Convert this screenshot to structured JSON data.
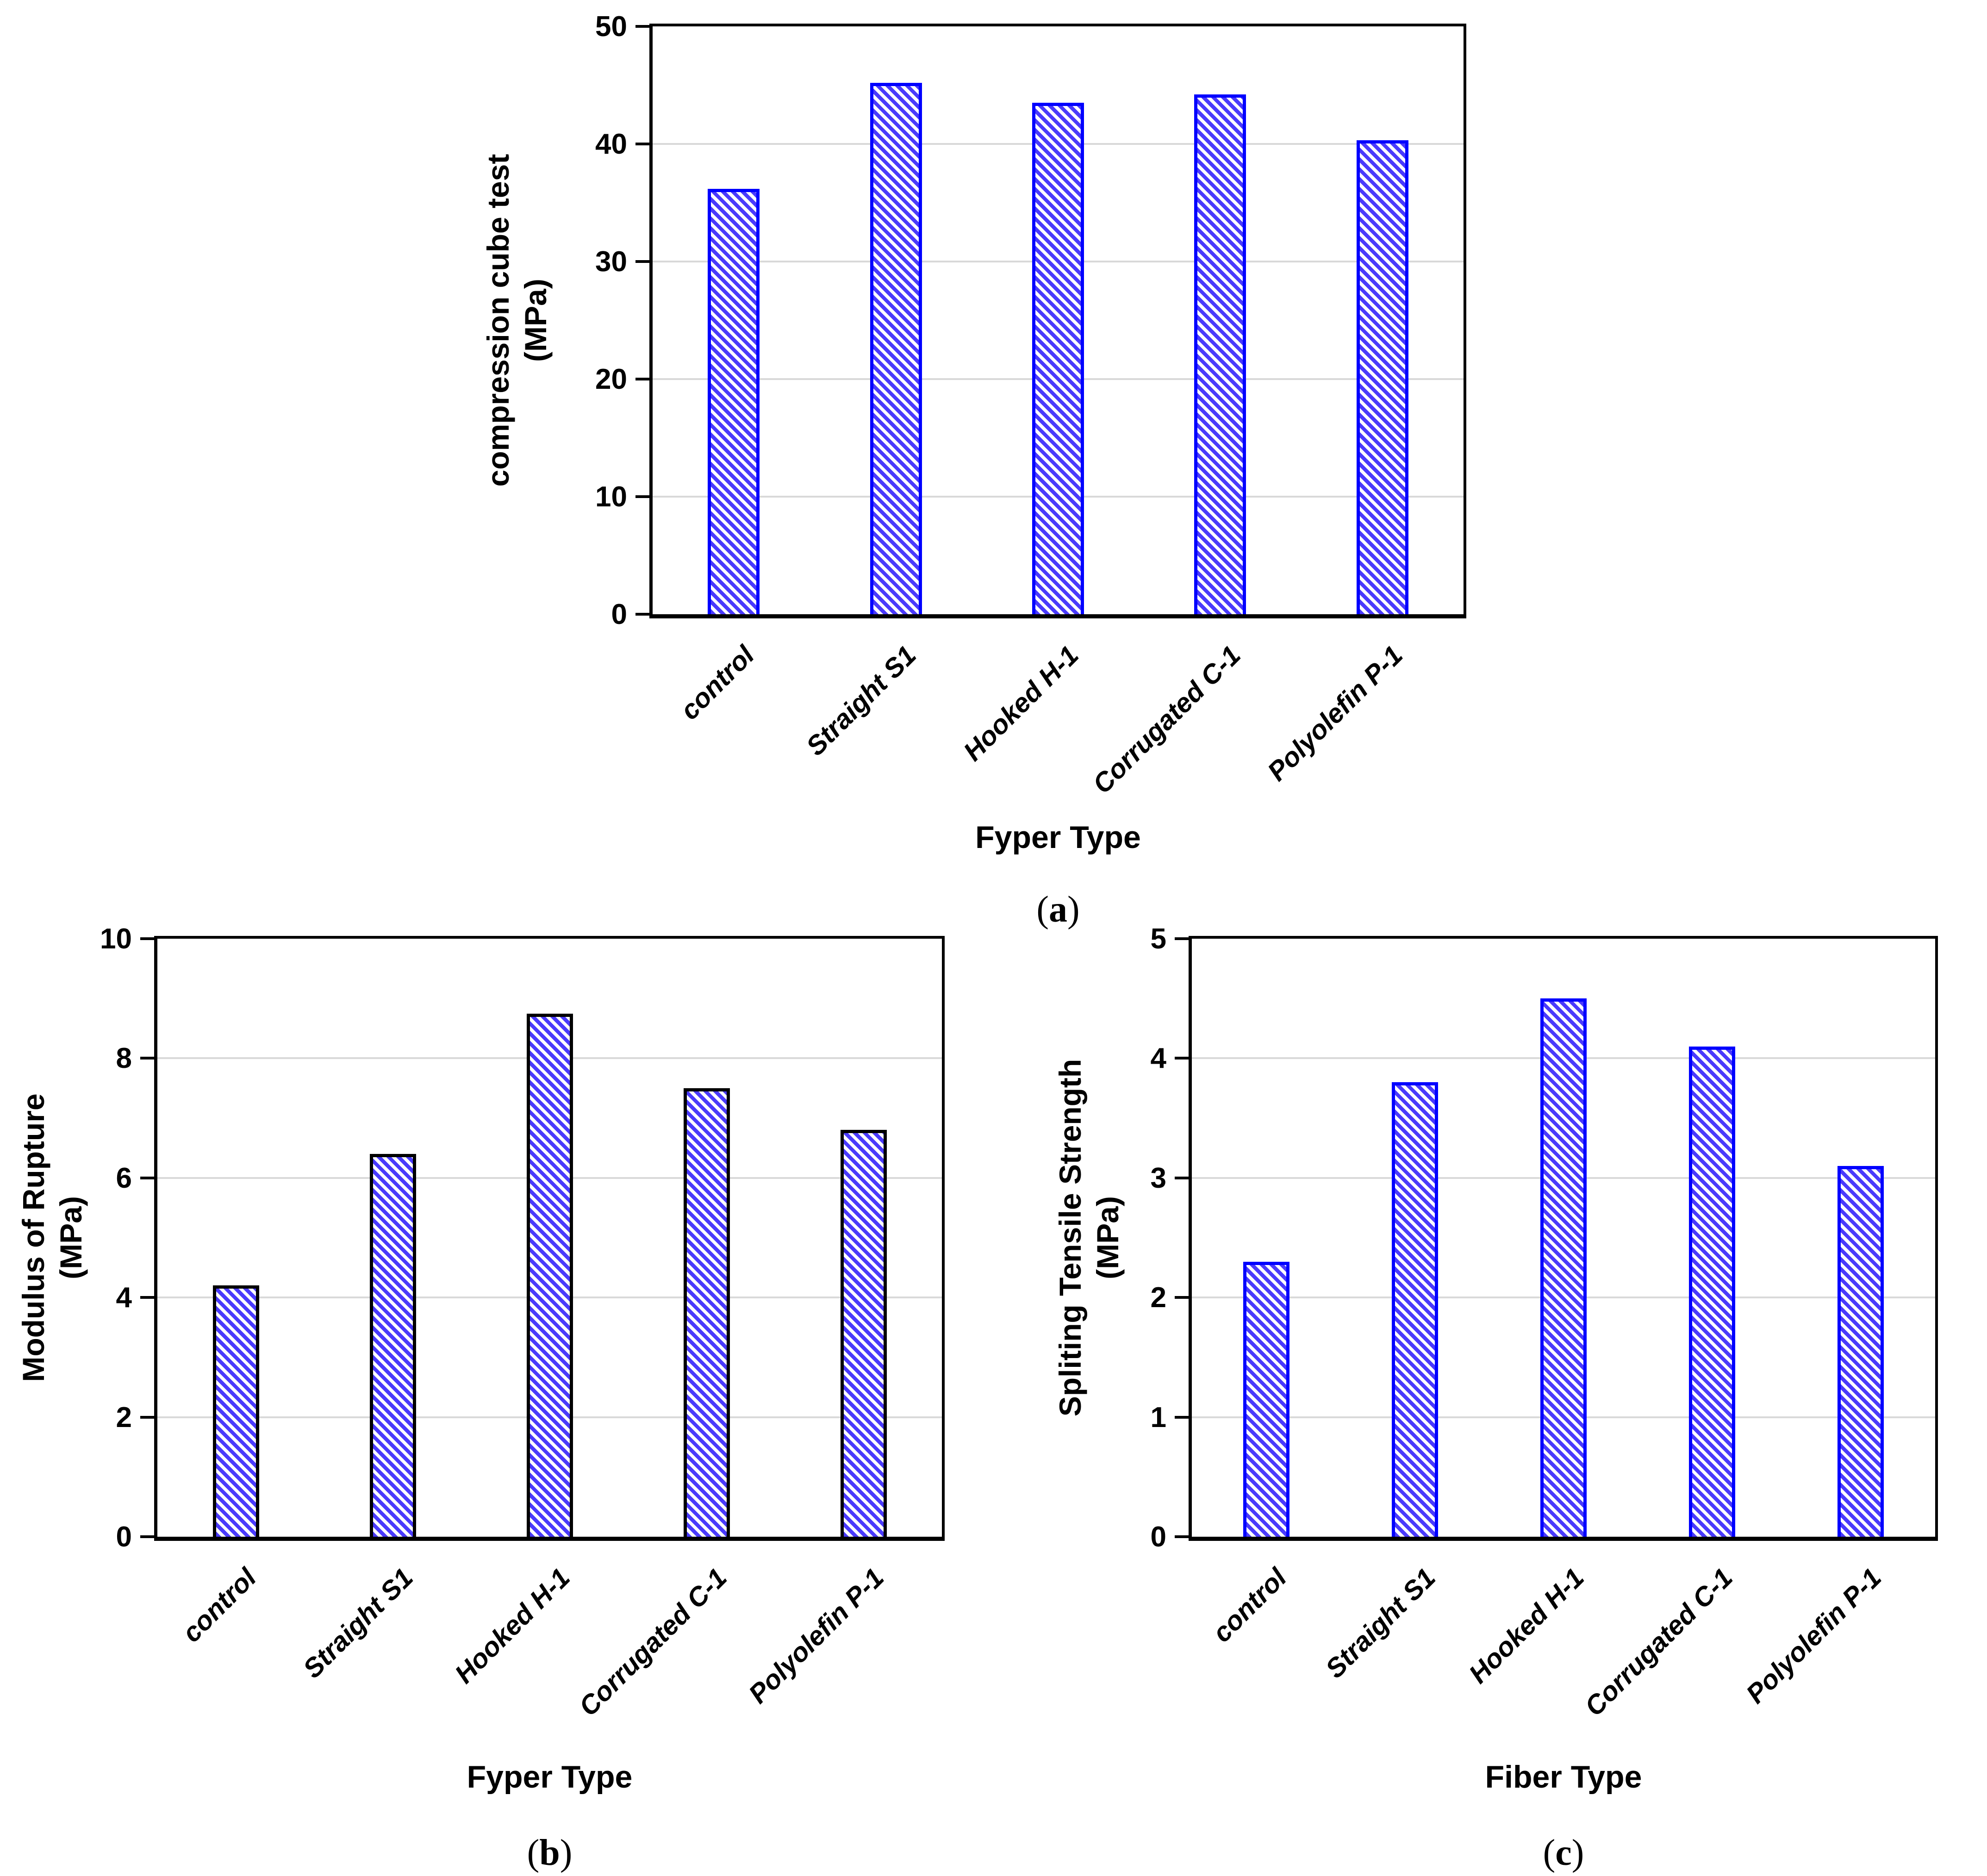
{
  "figure": {
    "background": "#FFFFFF",
    "grid_color": "#D9D9D9",
    "axis_color": "#000000",
    "hatch_color": "#4A3AFC",
    "hatch_style": "diagonal-stripes",
    "categories": [
      "control",
      "Straight S1",
      "Hooked H-1",
      "Corrugated C-1",
      "Polyolefin P-1"
    ]
  },
  "chart_data": [
    {
      "type": "bar",
      "panel": "a",
      "caption": {
        "open": "(",
        "letter": "a",
        "close": ")"
      },
      "categories": [
        "control",
        "Straight S1",
        "Hooked H-1",
        "Corrugated C-1",
        "Polyolefin P-1"
      ],
      "values": [
        36.2,
        45.2,
        43.5,
        44.2,
        40.3
      ],
      "xlabel": "Fyper Type",
      "ylabel": "compression cube test (MPa)",
      "ylabel_lines": [
        "compression cube test",
        "(MPa)"
      ],
      "ylim": [
        0,
        50
      ],
      "ytick_step": 10,
      "yticks": [
        "0",
        "10",
        "20",
        "30",
        "40",
        "50"
      ],
      "grid": true,
      "legend": "none",
      "bar_fill": "hatch",
      "bar_border_color": "#0000FF"
    },
    {
      "type": "bar",
      "panel": "b",
      "caption": {
        "open": "(",
        "letter": "b",
        "close": ")"
      },
      "categories": [
        "control",
        "Straight S1",
        "Hooked H-1",
        "Corrugated C-1",
        "Polyolefin P-1"
      ],
      "values": [
        4.2,
        6.4,
        8.75,
        7.5,
        6.8
      ],
      "xlabel": "Fyper Type",
      "ylabel": "Modulus of Rupture (MPa)",
      "ylabel_lines": [
        "Modulus of Rupture",
        "(MPa)"
      ],
      "ylim": [
        0,
        10
      ],
      "ytick_step": 2,
      "yticks": [
        "0",
        "2",
        "4",
        "6",
        "8",
        "10"
      ],
      "grid": true,
      "legend": "none",
      "bar_fill": "hatch",
      "bar_border_color": "#000000"
    },
    {
      "type": "bar",
      "panel": "c",
      "caption": {
        "open": "(",
        "letter": "c",
        "close": ")"
      },
      "categories": [
        "control",
        "Straight S1",
        "Hooked H-1",
        "Corrugated C-1",
        "Polyolefin P-1"
      ],
      "values": [
        2.3,
        3.8,
        4.5,
        4.1,
        3.1
      ],
      "xlabel": "Fiber Type",
      "ylabel": "Spliting Tensile Strength (MPa)",
      "ylabel_lines": [
        "Spliting Tensile Strength",
        "(MPa)"
      ],
      "ylim": [
        0,
        5
      ],
      "ytick_step": 1,
      "yticks": [
        "0",
        "1",
        "2",
        "3",
        "4",
        "5"
      ],
      "grid": true,
      "legend": "none",
      "bar_fill": "hatch",
      "bar_border_color": "#0000FF"
    }
  ]
}
